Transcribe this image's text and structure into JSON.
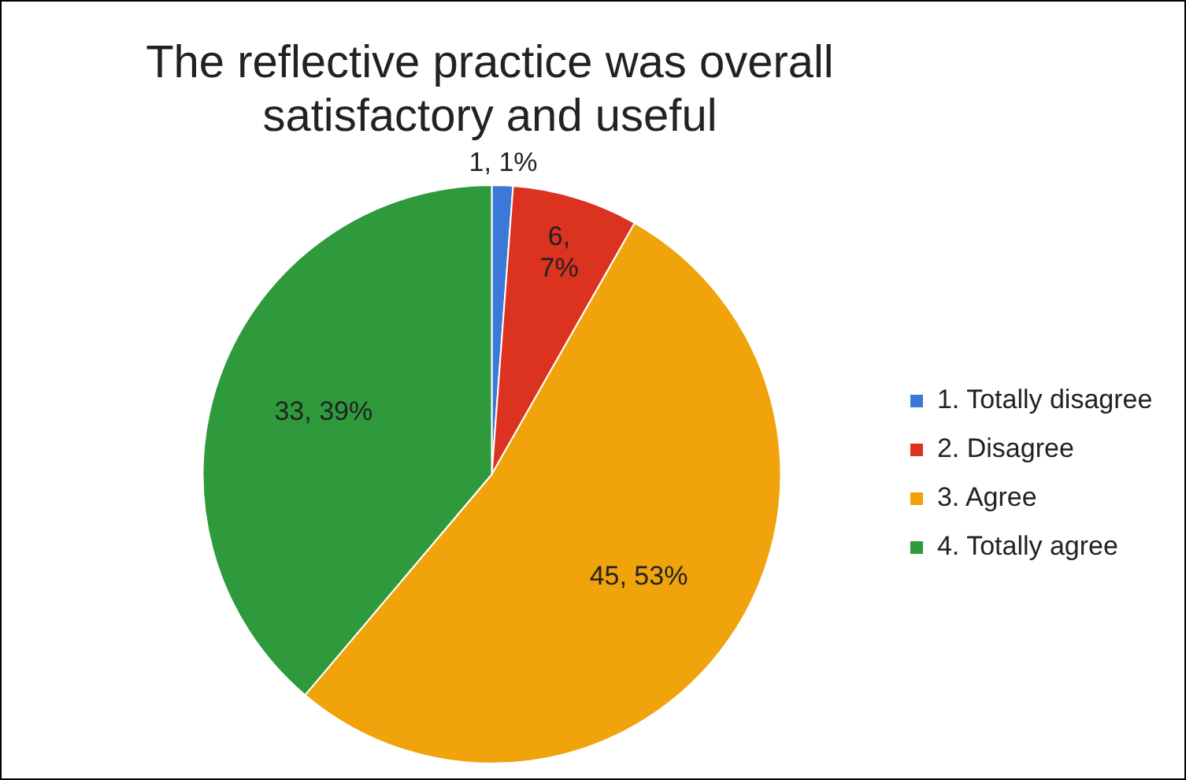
{
  "chart_data": {
    "type": "pie",
    "title": "The reflective practice was overall satisfactory and useful",
    "categories": [
      "1. Totally disagree",
      "2. Disagree",
      "3. Agree",
      "4. Totally agree"
    ],
    "values": [
      1,
      6,
      45,
      33
    ],
    "colors": [
      "#3c78d8",
      "#dc3220",
      "#f0a30a",
      "#2e9a3c"
    ],
    "value_labels": [
      "1, 1%",
      "6, 7%",
      "45, 53%",
      "33, 39%"
    ],
    "legend": "right"
  }
}
